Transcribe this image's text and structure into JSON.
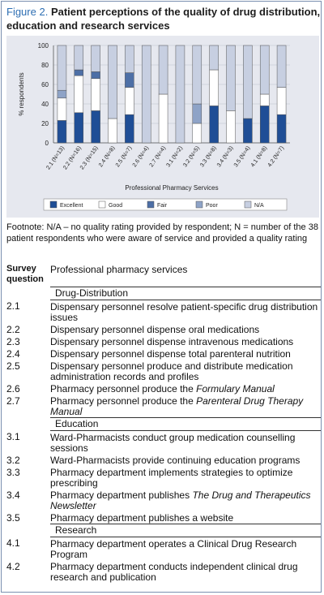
{
  "figure": {
    "number": "Figure 2.",
    "title": "Patient perceptions of the quality of drug distribution, education and research services"
  },
  "chart_data": {
    "type": "bar",
    "stacked": true,
    "title": "",
    "xlabel": "Professional Pharmacy Services",
    "ylabel": "% respondents",
    "ylim": [
      0,
      100
    ],
    "yticks": [
      "0",
      "20",
      "40",
      "60",
      "80",
      "100"
    ],
    "categories": [
      "2.1 (N=13)",
      "2.2 (N=16)",
      "2.3 (N=15)",
      "2.4 (N=8)",
      "2.5 (N=7)",
      "2.6 (N=4)",
      "2.7 (N=4)",
      "3.1 (N=2)",
      "3.2 (N=5)",
      "3.3 (N=8)",
      "3.4 (N=3)",
      "3.5 (N=4)",
      "4.1 (N=8)",
      "4.2 (N=7)"
    ],
    "series": [
      {
        "name": "Excellent",
        "color": "#1f4e96",
        "values": [
          23,
          31,
          33,
          0,
          29,
          0,
          0,
          0,
          0,
          38,
          0,
          25,
          38,
          29
        ]
      },
      {
        "name": "Good",
        "color": "#ffffff",
        "values": [
          23,
          38,
          33,
          25,
          28,
          0,
          50,
          0,
          20,
          37,
          33,
          0,
          12,
          28
        ]
      },
      {
        "name": "Fair",
        "color": "#4d6fa6",
        "values": [
          0,
          6,
          7,
          0,
          15,
          0,
          0,
          0,
          0,
          0,
          0,
          0,
          0,
          0
        ]
      },
      {
        "name": "Poor",
        "color": "#8ea3c7",
        "values": [
          8,
          0,
          0,
          0,
          0,
          0,
          0,
          0,
          20,
          0,
          0,
          0,
          0,
          0
        ]
      },
      {
        "name": "N/A",
        "color": "#c7cfe1",
        "values": [
          46,
          25,
          27,
          75,
          28,
          100,
          50,
          100,
          60,
          25,
          67,
          75,
          50,
          43
        ]
      }
    ],
    "grid": true,
    "legend_position": "bottom"
  },
  "footnote": "Footnote: N/A – no quality rating provided by respondent; N = number of the 38 patient respondents who were aware of service and provided a quality rating",
  "table": {
    "header_question": "Survey question",
    "header_services": "Professional pharmacy services",
    "sections": [
      {
        "title": "Drug-Distribution",
        "items": [
          {
            "q": "2.1",
            "text": "Dispensary personnel resolve patient-specific drug distribution issues"
          },
          {
            "q": "2.2",
            "text": "Dispensary personnel dispense oral medications"
          },
          {
            "q": "2.3",
            "text": "Dispensary personnel dispense intravenous medications"
          },
          {
            "q": "2.4",
            "text": "Dispensary personnel dispense total parenteral nutrition"
          },
          {
            "q": "2.5",
            "text": "Dispensary personnel produce and distribute medication administration records and  profiles"
          },
          {
            "q": "2.6",
            "text": "Pharmacy personnel produce the ",
            "ital": "Formulary Manual"
          },
          {
            "q": "2.7",
            "text": "Pharmacy personnel produce the ",
            "ital": "Parenteral Drug Therapy Manual"
          }
        ]
      },
      {
        "title": "Education",
        "items": [
          {
            "q": "3.1",
            "text": "Ward-Pharmacists conduct group medication counselling sessions"
          },
          {
            "q": "3.2",
            "text": "Ward-Pharmacists provide continuing education programs"
          },
          {
            "q": "3.3",
            "text": "Pharmacy department implements strategies to optimize prescribing"
          },
          {
            "q": "3.4",
            "text": "Pharmacy department publishes ",
            "ital": "The Drug and Therapeutics Newsletter"
          },
          {
            "q": "3.5",
            "text": "Pharmacy department publishes a website"
          }
        ]
      },
      {
        "title": "Research",
        "items": [
          {
            "q": "4.1",
            "text": "Pharmacy department operates a Clinical Drug Research Program"
          },
          {
            "q": "4.2",
            "text": "Pharmacy department conducts independent clinical drug research and publication"
          }
        ]
      }
    ]
  }
}
